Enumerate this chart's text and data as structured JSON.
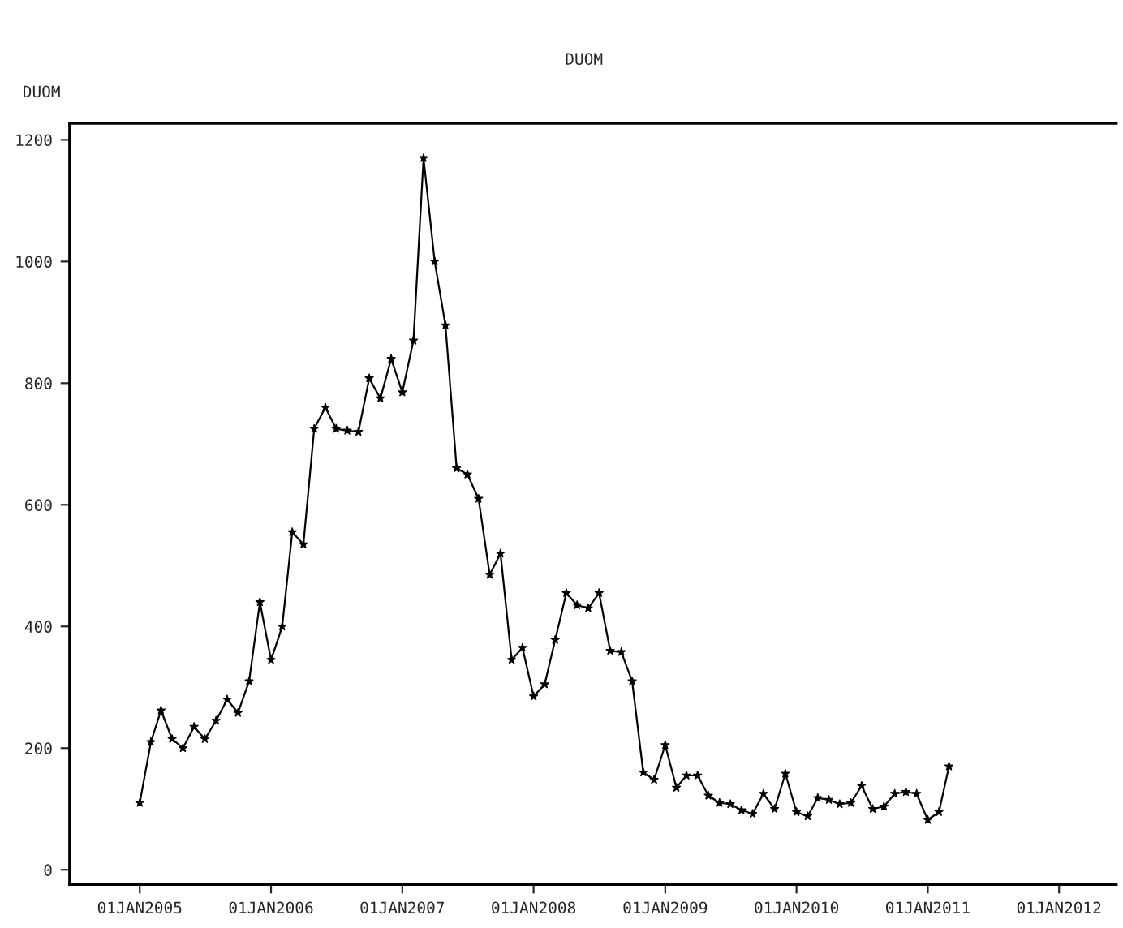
{
  "chart_data": {
    "type": "line",
    "title": "DUOM",
    "ylabel": "DUOM",
    "x": [
      "2005-01",
      "2005-02",
      "2005-03",
      "2005-04",
      "2005-05",
      "2005-06",
      "2005-07",
      "2005-08",
      "2005-09",
      "2005-10",
      "2005-11",
      "2005-12",
      "2006-01",
      "2006-02",
      "2006-03",
      "2006-04",
      "2006-05",
      "2006-06",
      "2006-07",
      "2006-08",
      "2006-09",
      "2006-10",
      "2006-11",
      "2006-12",
      "2007-01",
      "2007-02",
      "2007-03",
      "2007-04",
      "2007-05",
      "2007-06",
      "2007-07",
      "2007-08",
      "2007-09",
      "2007-10",
      "2007-11",
      "2007-12",
      "2008-01",
      "2008-02",
      "2008-03",
      "2008-04",
      "2008-05",
      "2008-06",
      "2008-07",
      "2008-08",
      "2008-09",
      "2008-10",
      "2008-11",
      "2008-12",
      "2009-01",
      "2009-02",
      "2009-03",
      "2009-04",
      "2009-05",
      "2009-06",
      "2009-07",
      "2009-08",
      "2009-09",
      "2009-10",
      "2009-11",
      "2009-12",
      "2010-01",
      "2010-02",
      "2010-03",
      "2010-04",
      "2010-05",
      "2010-06",
      "2010-07",
      "2010-08",
      "2010-09",
      "2010-10",
      "2010-11",
      "2010-12",
      "2011-01",
      "2011-02",
      "2011-03"
    ],
    "series": [
      {
        "color": "#000000",
        "values": [
          110,
          210,
          262,
          215,
          200,
          235,
          215,
          245,
          280,
          258,
          310,
          440,
          345,
          400,
          555,
          535,
          725,
          760,
          725,
          722,
          720,
          808,
          775,
          840,
          785,
          870,
          1170,
          1000,
          895,
          660,
          650,
          610,
          485,
          520,
          345,
          365,
          285,
          305,
          378,
          455,
          435,
          430,
          455,
          360,
          358,
          310,
          160,
          148,
          205,
          135,
          155,
          155,
          122,
          110,
          108,
          98,
          92,
          125,
          100,
          158,
          95,
          88,
          118,
          115,
          108,
          110,
          138,
          100,
          104,
          125,
          128,
          125,
          82,
          95,
          170
        ]
      }
    ],
    "xlim": [
      "2004-06-20",
      "2012-06-08"
    ],
    "xticks": [
      {
        "value": "2005-01-01",
        "label": "01JAN2005"
      },
      {
        "value": "2006-01-01",
        "label": "01JAN2006"
      },
      {
        "value": "2007-01-01",
        "label": "01JAN2007"
      },
      {
        "value": "2008-01-01",
        "label": "01JAN2008"
      },
      {
        "value": "2009-01-01",
        "label": "01JAN2009"
      },
      {
        "value": "2010-01-01",
        "label": "01JAN2010"
      },
      {
        "value": "2011-01-01",
        "label": "01JAN2011"
      },
      {
        "value": "2012-01-01",
        "label": "01JAN2012"
      }
    ],
    "ylim": [
      -24,
      1227
    ],
    "yticks": [
      0,
      200,
      400,
      600,
      800,
      1000,
      1200
    ],
    "grid": false,
    "legend": false,
    "marker": "star",
    "line_style": "solid"
  }
}
